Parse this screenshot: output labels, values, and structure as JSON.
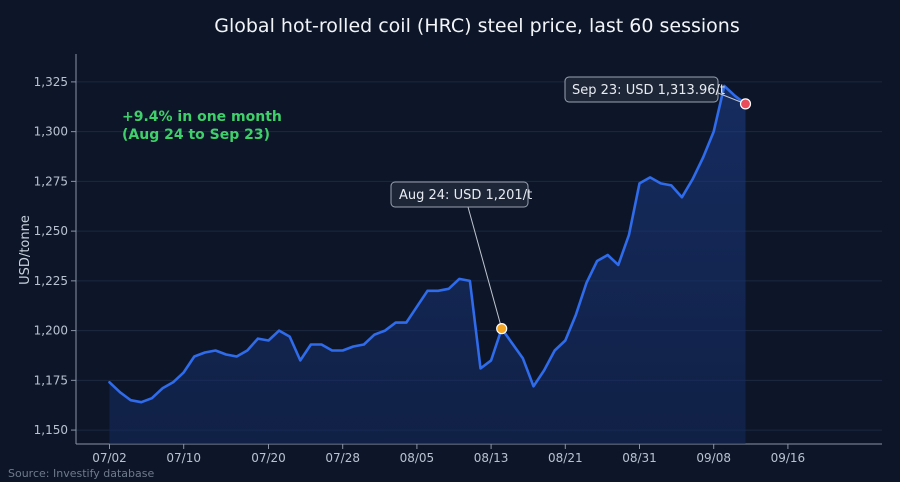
{
  "chart_data": {
    "type": "line",
    "title": "Global hot-rolled coil (HRC) steel price, last 60 sessions",
    "ylabel": "USD/tonne",
    "xlabel": "",
    "ylim": [
      1143,
      1335
    ],
    "yticks": [
      1150,
      1175,
      1200,
      1225,
      1250,
      1275,
      1300,
      1325
    ],
    "ytick_labels": [
      "1,150",
      "1,175",
      "1,200",
      "1,225",
      "1,250",
      "1,275",
      "1,300",
      "1,325"
    ],
    "xtick_labels": [
      "07/02",
      "07/10",
      "07/20",
      "07/28",
      "08/05",
      "08/13",
      "08/21",
      "08/31",
      "09/08",
      "09/16"
    ],
    "xtick_index": [
      0,
      7,
      15,
      22,
      29,
      36,
      43,
      50,
      57,
      64
    ],
    "x_count": 72,
    "grid": true,
    "series": [
      {
        "color": "#2f6bea",
        "values": [
          1174,
          1169,
          1165,
          1164,
          1166,
          1171,
          1174,
          1179,
          1187,
          1189,
          1190,
          1188,
          1187,
          1190,
          1196,
          1195,
          1200,
          1197,
          1185,
          1193,
          1193,
          1190,
          1190,
          1192,
          1193,
          1198,
          1200,
          1204,
          1204,
          1212,
          1220,
          1220,
          1221,
          1226,
          1225,
          1181,
          1185,
          1201,
          1186,
          1172,
          1180,
          1190,
          1195,
          1208,
          1224,
          1235,
          1238,
          1233,
          1248,
          1274,
          1277,
          1274,
          1273,
          1267,
          1276,
          1287,
          1300,
          1323,
          1318,
          1313.96
        ]
      }
    ],
    "point_x_index": [
      0,
      1,
      2,
      3,
      4,
      5,
      6,
      7,
      8,
      9,
      10,
      11,
      12,
      13,
      14,
      15,
      16,
      17,
      18,
      19,
      20,
      21,
      22,
      23,
      24,
      25,
      26,
      27,
      28,
      29,
      30,
      31,
      32,
      33,
      34,
      35,
      36,
      37,
      39,
      40,
      41,
      42,
      43,
      44,
      45,
      46,
      47,
      48,
      49,
      50,
      51,
      52,
      53,
      54,
      55,
      56,
      57,
      58,
      59,
      60
    ],
    "annotations": [
      {
        "label": "Aug 24: USD 1,201/t",
        "point": 37,
        "color": "#f5a623"
      },
      {
        "label": "Sep 23: USD 1,313.96/t",
        "point": 59,
        "color": "#e84b5a"
      }
    ],
    "note": [
      "+9.4% in one month",
      "(Aug 24 to Sep 23)"
    ],
    "source": "Source: Investify database"
  }
}
